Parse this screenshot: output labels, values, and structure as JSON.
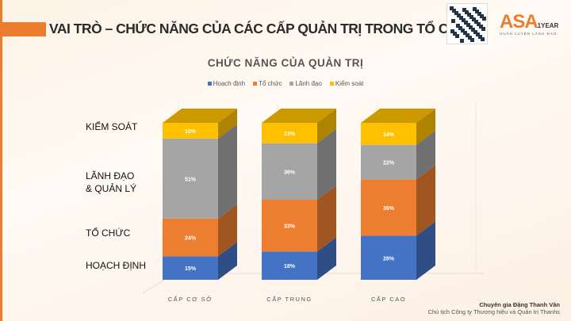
{
  "slide_title": "VAI TRÒ – CHỨC NĂNG CỦA CÁC CẤP QUẢN TRỊ TRONG TỔ CHỨC",
  "logo": {
    "text": "ASA",
    "year": "1YEAR",
    "tagline": "HUẤN LUYỆN LÃNH ĐẠO",
    "qr_label": "thanhs"
  },
  "side_labels": [
    "KIỂM SOÁT",
    "LÃNH ĐẠO\n& QUẢN LÝ",
    "TỔ CHỨC",
    "HOẠCH ĐỊNH"
  ],
  "footer": {
    "name": "Chuyên gia Đặng Thanh Vân",
    "role": "Chủ tịch Công ty Thương hiệu và Quản trị Thanhs"
  },
  "chart_data": {
    "type": "bar",
    "stacked": true,
    "three_d": true,
    "percent": true,
    "title": "CHỨC NĂNG CỦA QUẢN TRỊ",
    "legend_position": "top",
    "categories": [
      "CẤP CƠ SỞ",
      "CẤP TRUNG",
      "CẤP CAO"
    ],
    "series": [
      {
        "name": "Hoạch định",
        "color": "#4472c4",
        "values": [
          15,
          18,
          28
        ]
      },
      {
        "name": "Tổ chức",
        "color": "#ed7d31",
        "values": [
          24,
          33,
          36
        ]
      },
      {
        "name": "Lãnh đạo",
        "color": "#a5a5a5",
        "values": [
          51,
          36,
          22
        ]
      },
      {
        "name": "Kiểm soát",
        "color": "#ffc000",
        "values": [
          10,
          13,
          14
        ]
      }
    ]
  }
}
